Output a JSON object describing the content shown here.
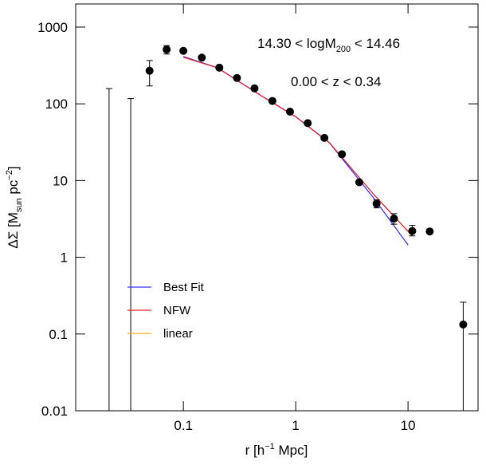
{
  "chart_data": {
    "type": "scatter",
    "annotations": [
      {
        "before": "14.30 < logM",
        "sub": "200",
        "after": " < 14.46"
      },
      {
        "text": "0.00 < z < 0.34"
      }
    ],
    "x_label": {
      "before": "r [h",
      "sup": "−1",
      "after": " Mpc]"
    },
    "y_label": {
      "before": "ΔΣ [M",
      "sub": "sun",
      "mid": " pc",
      "sup": "−2",
      "after": "]"
    },
    "log_x": true,
    "log_y": true,
    "xlim": [
      0.011,
      42
    ],
    "ylim": [
      0.01,
      2000
    ],
    "xticks": [
      0.1,
      1,
      10
    ],
    "yticks": [
      0.01,
      0.1,
      1,
      10,
      100,
      1000
    ],
    "legend": "lower left",
    "points": {
      "color": "#000000",
      "x": [
        0.0218,
        0.034,
        0.05,
        0.071,
        0.1,
        0.146,
        0.209,
        0.3,
        0.43,
        0.62,
        0.89,
        1.28,
        1.8,
        2.58,
        3.68,
        5.25,
        7.5,
        10.9,
        15.6,
        31
      ],
      "values": [
        null,
        null,
        270,
        510,
        490,
        400,
        296,
        217,
        159,
        109,
        79,
        56,
        36,
        22,
        9.5,
        5.0,
        3.2,
        2.2,
        2.17,
        0.133
      ],
      "err_low": [
        null,
        null,
        171,
        445,
        null,
        null,
        null,
        null,
        null,
        null,
        null,
        null,
        null,
        null,
        null,
        4.4,
        2.7,
        1.9,
        null,
        null
      ],
      "err_high": [
        158,
        117,
        367,
        575,
        null,
        null,
        null,
        null,
        null,
        null,
        null,
        null,
        null,
        null,
        null,
        5.6,
        3.7,
        2.6,
        null,
        0.26
      ]
    },
    "series": [
      {
        "name": "Best Fit",
        "color": "#3333ff",
        "x": [
          0.1,
          0.2,
          0.5,
          1,
          2,
          5,
          10
        ],
        "values": [
          414,
          296,
          126,
          68,
          31,
          5.8,
          1.45
        ]
      },
      {
        "name": "NFW",
        "color": "#e0202a",
        "x": [
          0.1,
          0.2,
          0.5,
          1,
          2,
          5,
          10.9
        ],
        "values": [
          405,
          296,
          126,
          68,
          31,
          6.5,
          1.9
        ]
      },
      {
        "name": "linear",
        "color": "#f0b020"
      }
    ]
  }
}
